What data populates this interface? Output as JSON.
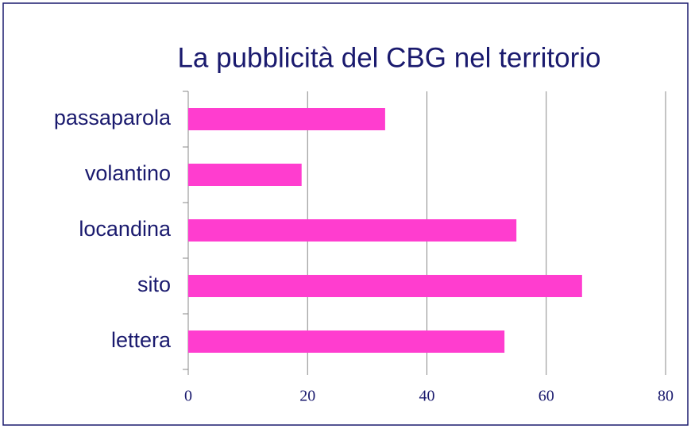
{
  "chart_data": {
    "type": "bar",
    "orientation": "horizontal",
    "title": "La pubblicità del CBG nel territorio",
    "categories": [
      "passaparola",
      "volantino",
      "locandina",
      "sito",
      "lettera"
    ],
    "values": [
      33,
      19,
      55,
      66,
      53
    ],
    "color": "#ff3dcf",
    "xlim": [
      0,
      80
    ],
    "xticks": [
      0,
      20,
      40,
      60,
      80
    ],
    "grid": true
  }
}
